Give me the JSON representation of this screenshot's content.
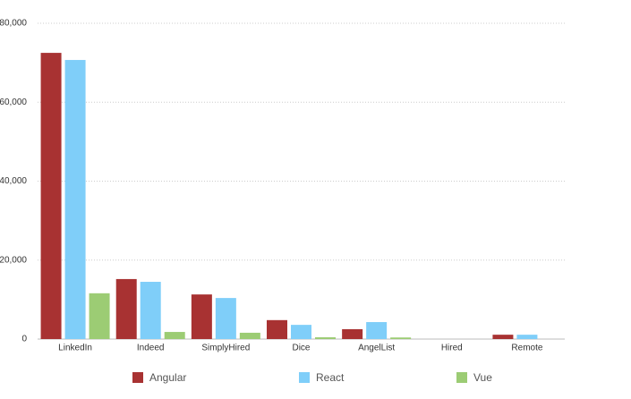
{
  "chart_data": {
    "type": "bar",
    "categories": [
      "LinkedIn",
      "Indeed",
      "SimplyHired",
      "Dice",
      "AngelList",
      "Hired",
      "Remote"
    ],
    "series": [
      {
        "name": "Angular",
        "color": "#a83232",
        "values": [
          72500,
          15200,
          11300,
          4800,
          2500,
          0,
          1100
        ]
      },
      {
        "name": "React",
        "color": "#7fcef9",
        "values": [
          70700,
          14500,
          10400,
          3600,
          4300,
          0,
          1100
        ]
      },
      {
        "name": "Vue",
        "color": "#9ccc74",
        "values": [
          11600,
          1800,
          1600,
          450,
          400,
          0,
          0
        ]
      }
    ],
    "ylim": [
      0,
      80000
    ],
    "yticks": [
      0,
      {
        "value": 20000,
        "label": "20,000"
      },
      {
        "value": 40000,
        "label": "40,000"
      },
      {
        "value": 60000,
        "label": "60,000"
      },
      {
        "value": 80000,
        "label": "80,000"
      }
    ],
    "grid": true
  }
}
